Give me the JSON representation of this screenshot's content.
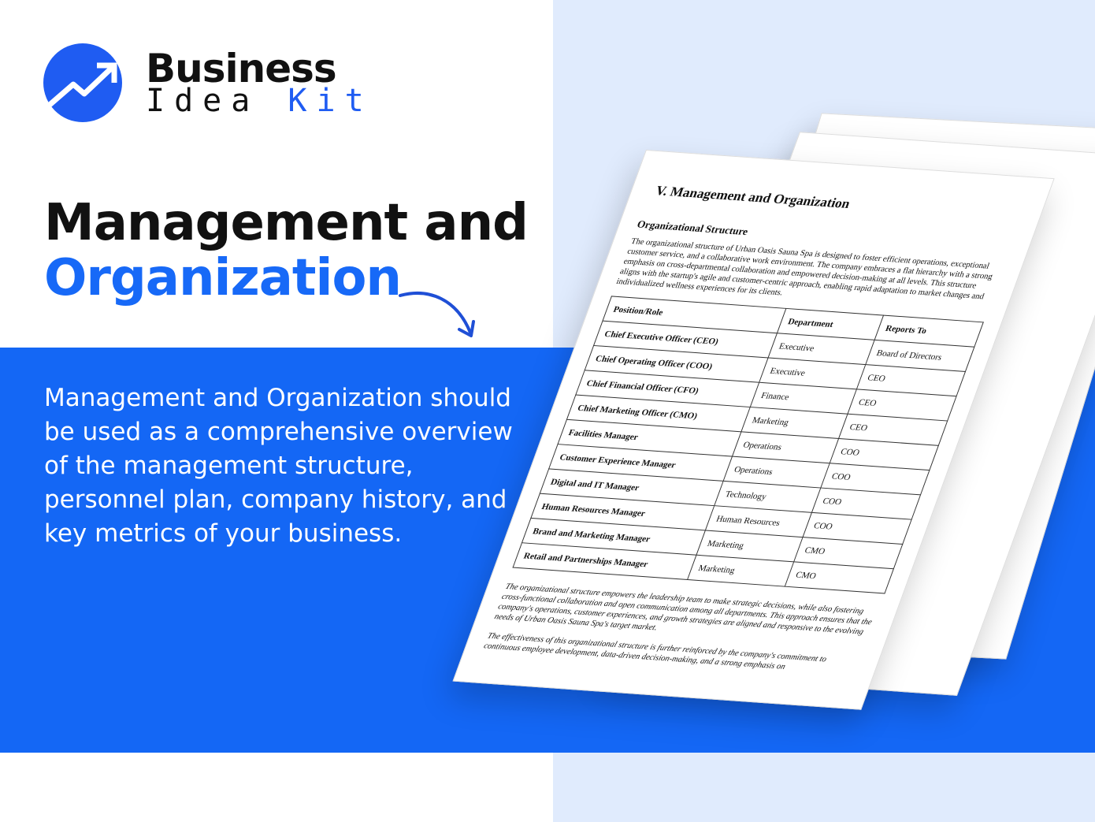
{
  "brand": {
    "line1": "Business",
    "line2a": "Idea",
    "line2b": "Kit",
    "accent": "#1f5cf2"
  },
  "title": {
    "line1": "Management and",
    "line2": "Organization"
  },
  "description": "Management and Organization should be used as a comprehensive overview of the management structure, personnel plan, company history, and key metrics of your business.",
  "document": {
    "heading": "V. Management and Organization",
    "subheading": "Organizational Structure",
    "intro": "The organizational structure of Urban Oasis Sauna Spa is designed to foster efficient operations, exceptional customer service, and a collaborative work environment. The company embraces a flat hierarchy with a strong emphasis on cross-departmental collaboration and empowered decision-making at all levels. This structure aligns with the startup's agile and customer-centric approach, enabling rapid adaptation to market changes and individualized wellness experiences for its clients.",
    "columns": [
      "Position/Role",
      "Department",
      "Reports To"
    ],
    "rows": [
      [
        "Chief Executive Officer (CEO)",
        "Executive",
        "Board of Directors"
      ],
      [
        "Chief Operating Officer (COO)",
        "Executive",
        "CEO"
      ],
      [
        "Chief Financial Officer (CFO)",
        "Finance",
        "CEO"
      ],
      [
        "Chief Marketing Officer (CMO)",
        "Marketing",
        "CEO"
      ],
      [
        "Facilities Manager",
        "Operations",
        "COO"
      ],
      [
        "Customer Experience Manager",
        "Operations",
        "COO"
      ],
      [
        "Digital and IT Manager",
        "Technology",
        "COO"
      ],
      [
        "Human Resources Manager",
        "Human Resources",
        "COO"
      ],
      [
        "Brand and Marketing Manager",
        "Marketing",
        "CMO"
      ],
      [
        "Retail and Partnerships Manager",
        "Marketing",
        "CMO"
      ]
    ],
    "para2": "The organizational structure empowers the leadership team to make strategic decisions, while also fostering cross-functional collaboration and open communication among all departments. This approach ensures that the company's operations, customer experiences, and growth strategies are aligned and responsive to the evolving needs of Urban Oasis Sauna Spa's target market.",
    "para3": "The effectiveness of this organizational structure is further reinforced by the company's commitment to continuous employee development, data-driven decision-making, and a strong emphasis on"
  }
}
